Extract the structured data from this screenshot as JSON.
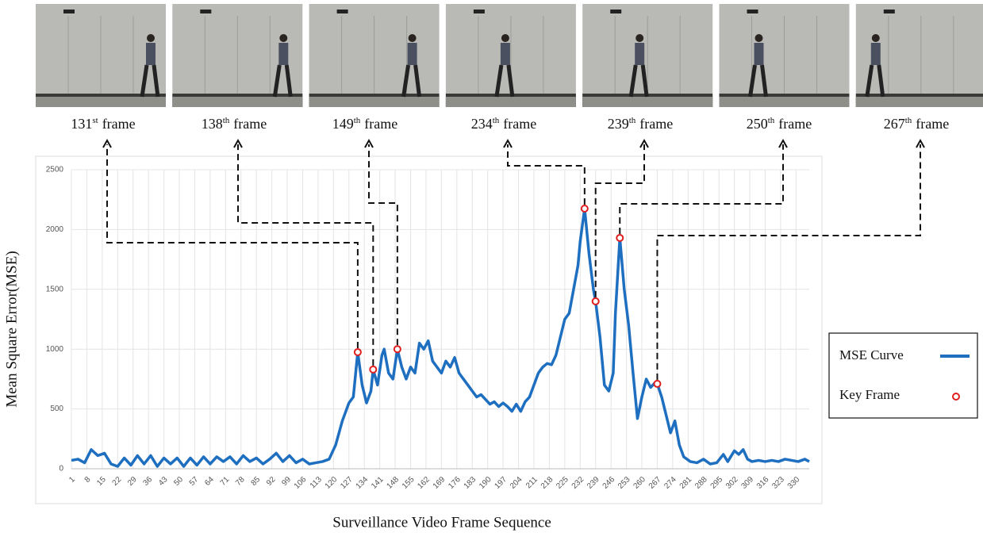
{
  "chart_data": {
    "type": "line",
    "xlabel": "Surveillance Video Frame Sequence",
    "ylabel": "Mean Square Error(MSE)",
    "xlim": [
      1,
      336
    ],
    "ylim": [
      0,
      2500
    ],
    "yticks": [
      0,
      500,
      1000,
      1500,
      2000,
      2500
    ],
    "xticks": [
      1,
      8,
      15,
      22,
      29,
      36,
      43,
      50,
      57,
      64,
      71,
      78,
      85,
      92,
      99,
      106,
      113,
      120,
      127,
      134,
      141,
      148,
      155,
      162,
      169,
      176,
      183,
      190,
      197,
      204,
      211,
      218,
      225,
      232,
      239,
      246,
      253,
      260,
      267,
      274,
      281,
      288,
      295,
      302,
      309,
      316,
      323,
      330
    ],
    "grid": true,
    "legend": "right",
    "series": [
      {
        "name": "MSE Curve",
        "color": "#1f6fc0",
        "x": [
          1,
          4,
          7,
          10,
          13,
          16,
          19,
          22,
          25,
          28,
          31,
          34,
          37,
          40,
          43,
          46,
          49,
          52,
          55,
          58,
          61,
          64,
          67,
          70,
          73,
          76,
          79,
          82,
          85,
          88,
          91,
          94,
          97,
          100,
          103,
          106,
          109,
          112,
          115,
          118,
          121,
          124,
          127,
          129,
          131,
          133,
          135,
          137,
          138,
          140,
          142,
          143,
          145,
          147,
          149,
          151,
          153,
          155,
          157,
          159,
          161,
          163,
          165,
          167,
          169,
          171,
          173,
          175,
          177,
          179,
          181,
          183,
          185,
          187,
          189,
          191,
          193,
          195,
          197,
          199,
          201,
          203,
          205,
          207,
          209,
          211,
          213,
          215,
          217,
          219,
          221,
          223,
          225,
          227,
          229,
          231,
          232,
          234,
          236,
          238,
          239,
          241,
          243,
          245,
          247,
          248,
          250,
          252,
          254,
          256,
          258,
          260,
          262,
          264,
          266,
          267,
          269,
          271,
          273,
          275,
          277,
          279,
          282,
          285,
          288,
          291,
          294,
          297,
          299,
          302,
          304,
          306,
          308,
          310,
          313,
          316,
          319,
          322,
          325,
          328,
          331,
          334,
          336
        ],
        "values": [
          70,
          80,
          50,
          160,
          110,
          130,
          40,
          20,
          90,
          30,
          110,
          40,
          110,
          20,
          90,
          40,
          90,
          20,
          90,
          30,
          100,
          40,
          100,
          60,
          100,
          40,
          110,
          60,
          90,
          40,
          80,
          130,
          60,
          110,
          50,
          80,
          40,
          50,
          60,
          80,
          200,
          400,
          550,
          600,
          975,
          700,
          550,
          650,
          830,
          700,
          950,
          1000,
          800,
          750,
          1000,
          850,
          750,
          850,
          800,
          1050,
          1000,
          1070,
          900,
          850,
          800,
          900,
          850,
          930,
          800,
          750,
          700,
          650,
          600,
          620,
          580,
          540,
          560,
          520,
          550,
          520,
          480,
          540,
          480,
          560,
          600,
          700,
          800,
          850,
          880,
          870,
          950,
          1100,
          1250,
          1300,
          1500,
          1700,
          1900,
          2175,
          1800,
          1500,
          1400,
          1100,
          700,
          650,
          800,
          1300,
          1930,
          1500,
          1200,
          800,
          420,
          600,
          750,
          680,
          720,
          710,
          600,
          450,
          300,
          400,
          200,
          100,
          60,
          50,
          80,
          40,
          50,
          120,
          60,
          150,
          120,
          160,
          80,
          60,
          70,
          60,
          70,
          60,
          80,
          70,
          60,
          80,
          60
        ]
      },
      {
        "name": "Key Frame",
        "color": "#e02020",
        "x": [
          131,
          138,
          149,
          234,
          239,
          250,
          267
        ],
        "values": [
          975,
          830,
          1000,
          2175,
          1400,
          1930,
          710
        ],
        "suffixes": [
          "st",
          "th",
          "th",
          "th",
          "th",
          "th",
          "th"
        ]
      }
    ],
    "frame_word": "frame"
  }
}
